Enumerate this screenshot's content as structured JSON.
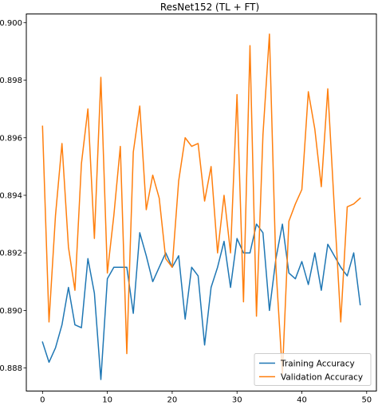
{
  "chart_data": {
    "type": "line",
    "title": "ResNet152 (TL + FT)",
    "xlabel": "",
    "ylabel": "",
    "xlim": [
      -2.5,
      51.5
    ],
    "ylim": [
      0.8872,
      0.9003
    ],
    "xticks": [
      0,
      10,
      20,
      30,
      40,
      50
    ],
    "yticks": [
      0.888,
      0.89,
      0.892,
      0.894,
      0.896,
      0.898,
      0.9
    ],
    "ytick_labels": [
      "0.888",
      "0.890",
      "0.892",
      "0.894",
      "0.896",
      "0.898",
      "0.900"
    ],
    "grid": false,
    "legend_position": "lower-right",
    "x": [
      0,
      1,
      2,
      3,
      4,
      5,
      6,
      7,
      8,
      9,
      10,
      11,
      12,
      13,
      14,
      15,
      16,
      17,
      18,
      19,
      20,
      21,
      22,
      23,
      24,
      25,
      26,
      27,
      28,
      29,
      30,
      31,
      32,
      33,
      34,
      35,
      36,
      37,
      38,
      39,
      40,
      41,
      42,
      43,
      44,
      45,
      46,
      47,
      48,
      49
    ],
    "series": [
      {
        "name": "Training Accuracy",
        "color": "#1f77b4",
        "values": [
          0.8889,
          0.8882,
          0.8887,
          0.8895,
          0.8908,
          0.8895,
          0.8894,
          0.8918,
          0.8906,
          0.8876,
          0.8911,
          0.8915,
          0.8915,
          0.8915,
          0.8899,
          0.8927,
          0.8919,
          0.891,
          0.8915,
          0.892,
          0.8915,
          0.8919,
          0.8897,
          0.8915,
          0.8912,
          0.8888,
          0.8908,
          0.8915,
          0.8924,
          0.8908,
          0.8925,
          0.892,
          0.892,
          0.893,
          0.8927,
          0.89,
          0.8918,
          0.893,
          0.8913,
          0.8911,
          0.8917,
          0.8909,
          0.892,
          0.8907,
          0.8923,
          0.8919,
          0.8915,
          0.8912,
          0.892,
          0.8902
        ]
      },
      {
        "name": "Validation Accuracy",
        "color": "#ff7f0e",
        "values": [
          0.8964,
          0.8896,
          0.8933,
          0.8958,
          0.8922,
          0.8907,
          0.8951,
          0.897,
          0.8925,
          0.8981,
          0.8913,
          0.8933,
          0.8957,
          0.8885,
          0.8955,
          0.8971,
          0.8935,
          0.8947,
          0.8939,
          0.8918,
          0.8915,
          0.8945,
          0.896,
          0.8957,
          0.8958,
          0.8938,
          0.895,
          0.892,
          0.894,
          0.892,
          0.8975,
          0.8903,
          0.8992,
          0.8898,
          0.8961,
          0.8996,
          0.8915,
          0.8878,
          0.8931,
          0.8937,
          0.8942,
          0.8976,
          0.8963,
          0.8943,
          0.8977,
          0.8936,
          0.8896,
          0.8936,
          0.8937,
          0.8939
        ]
      }
    ]
  }
}
